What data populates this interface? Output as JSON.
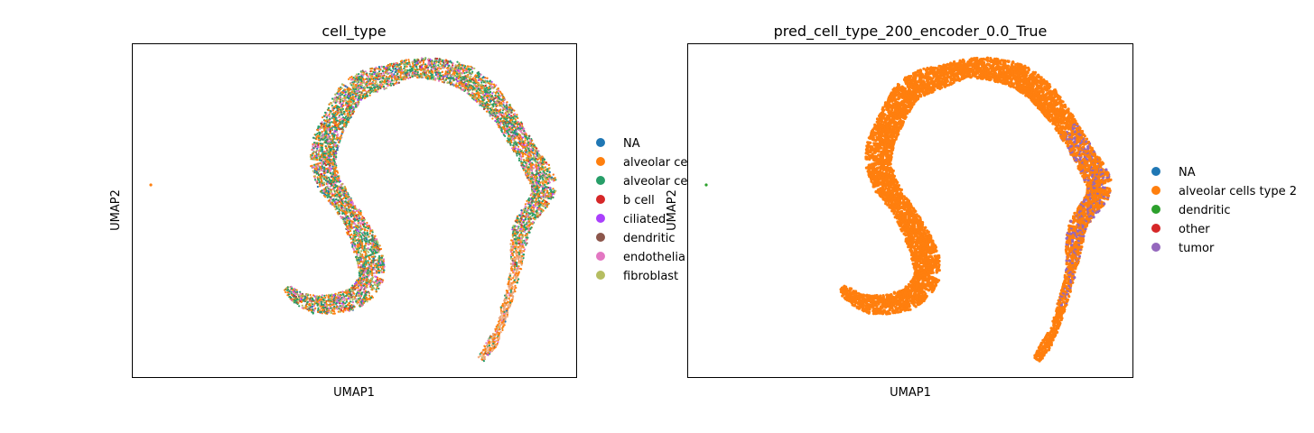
{
  "chart_data": [
    {
      "type": "scatter",
      "title": "cell_type",
      "xlabel": "UMAP1",
      "ylabel": "UMAP2",
      "grid": false,
      "legend_placement": "right",
      "legend": [
        {
          "label": "NA",
          "color": "#1f77b4"
        },
        {
          "label": "alveolar ce",
          "color": "#ff7f0e"
        },
        {
          "label": "alveolar ce",
          "color": "#279e68"
        },
        {
          "label": "b cell",
          "color": "#d62728"
        },
        {
          "label": "ciliated",
          "color": "#aa40fc"
        },
        {
          "label": "dendritic",
          "color": "#8c564b"
        },
        {
          "label": "endothelia",
          "color": "#e377c2"
        },
        {
          "label": "fibroblast",
          "color": "#b5bd61"
        }
      ],
      "scatter_palette": [
        "#ff7f0e",
        "#279e68",
        "#e377c2",
        "#b5bd61",
        "#8c564b",
        "#aa40fc",
        "#d62728",
        "#1f77b4"
      ],
      "palette_weights": [
        30,
        30,
        14,
        14,
        4,
        3,
        2,
        3
      ],
      "tail_palette": [
        "#ff7f0e",
        "#f5b48a",
        "#e7a27a"
      ]
    },
    {
      "type": "scatter",
      "title": "pred_cell_type_200_encoder_0.0_True",
      "xlabel": "UMAP1",
      "ylabel": "UMAP2",
      "grid": false,
      "legend_placement": "right",
      "legend": [
        {
          "label": "NA",
          "color": "#1f77b4"
        },
        {
          "label": "alveolar cells type 2",
          "color": "#ff7f0e"
        },
        {
          "label": "dendritic",
          "color": "#2ca02c"
        },
        {
          "label": "other",
          "color": "#d62728"
        },
        {
          "label": "tumor",
          "color": "#9467bd"
        }
      ],
      "scatter_palette": [
        "#ff7f0e"
      ],
      "palette_weights": [
        1
      ],
      "tumor_color": "#9467bd",
      "outlier_color": "#2ca02c"
    }
  ]
}
